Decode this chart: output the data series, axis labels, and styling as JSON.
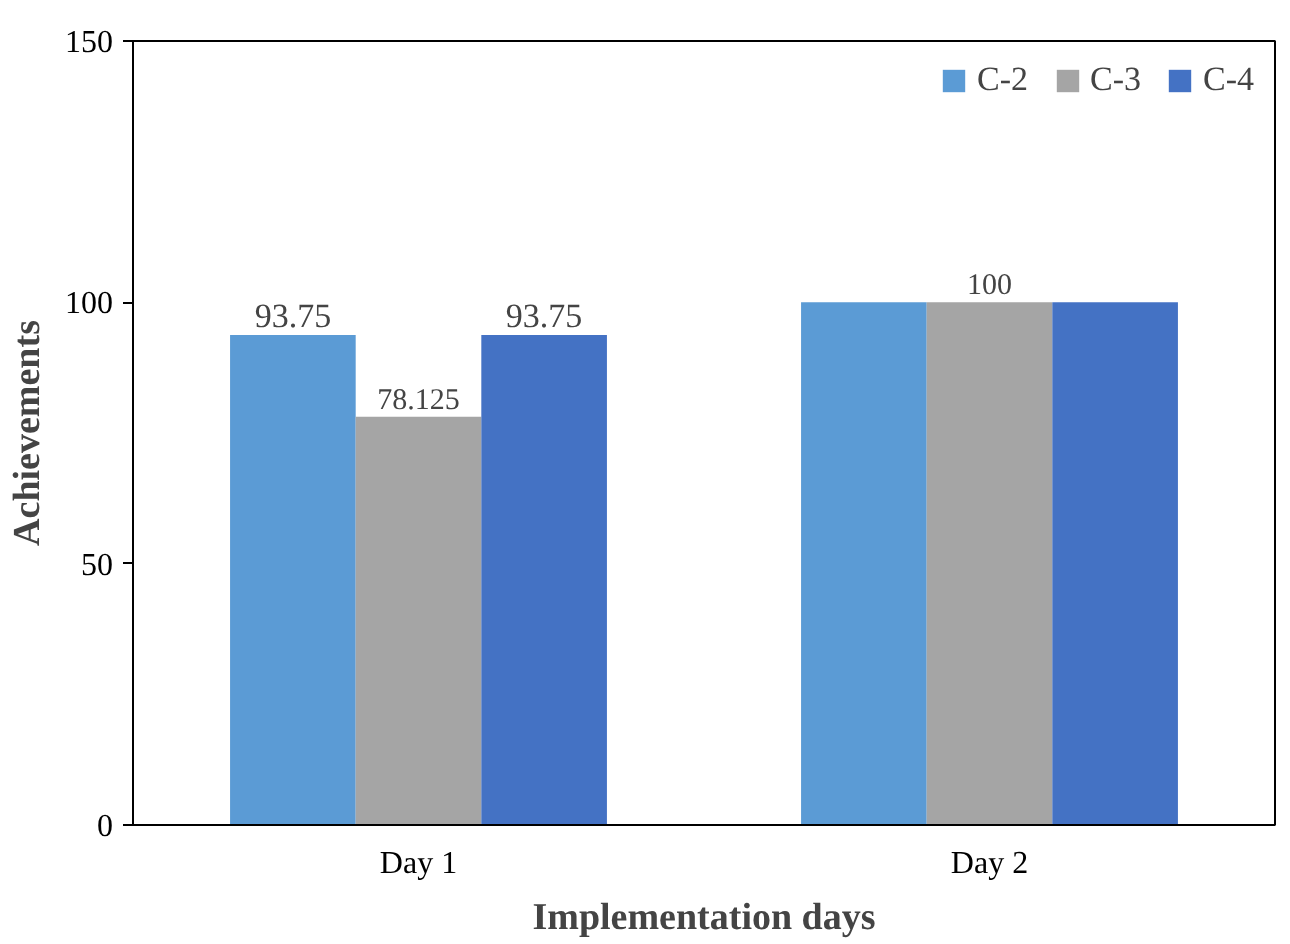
{
  "chart_data": {
    "type": "bar",
    "xlabel": "Implementation days",
    "ylabel": "Achievements",
    "categories": [
      "Day 1",
      "Day 2"
    ],
    "series": [
      {
        "name": "C-2",
        "color": "#5b9bd5",
        "values": [
          93.75,
          100
        ],
        "value_labels": [
          "93.75",
          null
        ]
      },
      {
        "name": "C-3",
        "color": "#a5a5a5",
        "values": [
          78.125,
          100
        ],
        "value_labels": [
          "78.125",
          "100"
        ]
      },
      {
        "name": "C-4",
        "color": "#4472c4",
        "values": [
          93.75,
          100
        ],
        "value_labels": [
          "93.75",
          null
        ]
      }
    ],
    "ylim": [
      0,
      150
    ],
    "yticks": [
      0,
      50,
      100,
      150
    ],
    "grid": false,
    "legend": "top right"
  }
}
